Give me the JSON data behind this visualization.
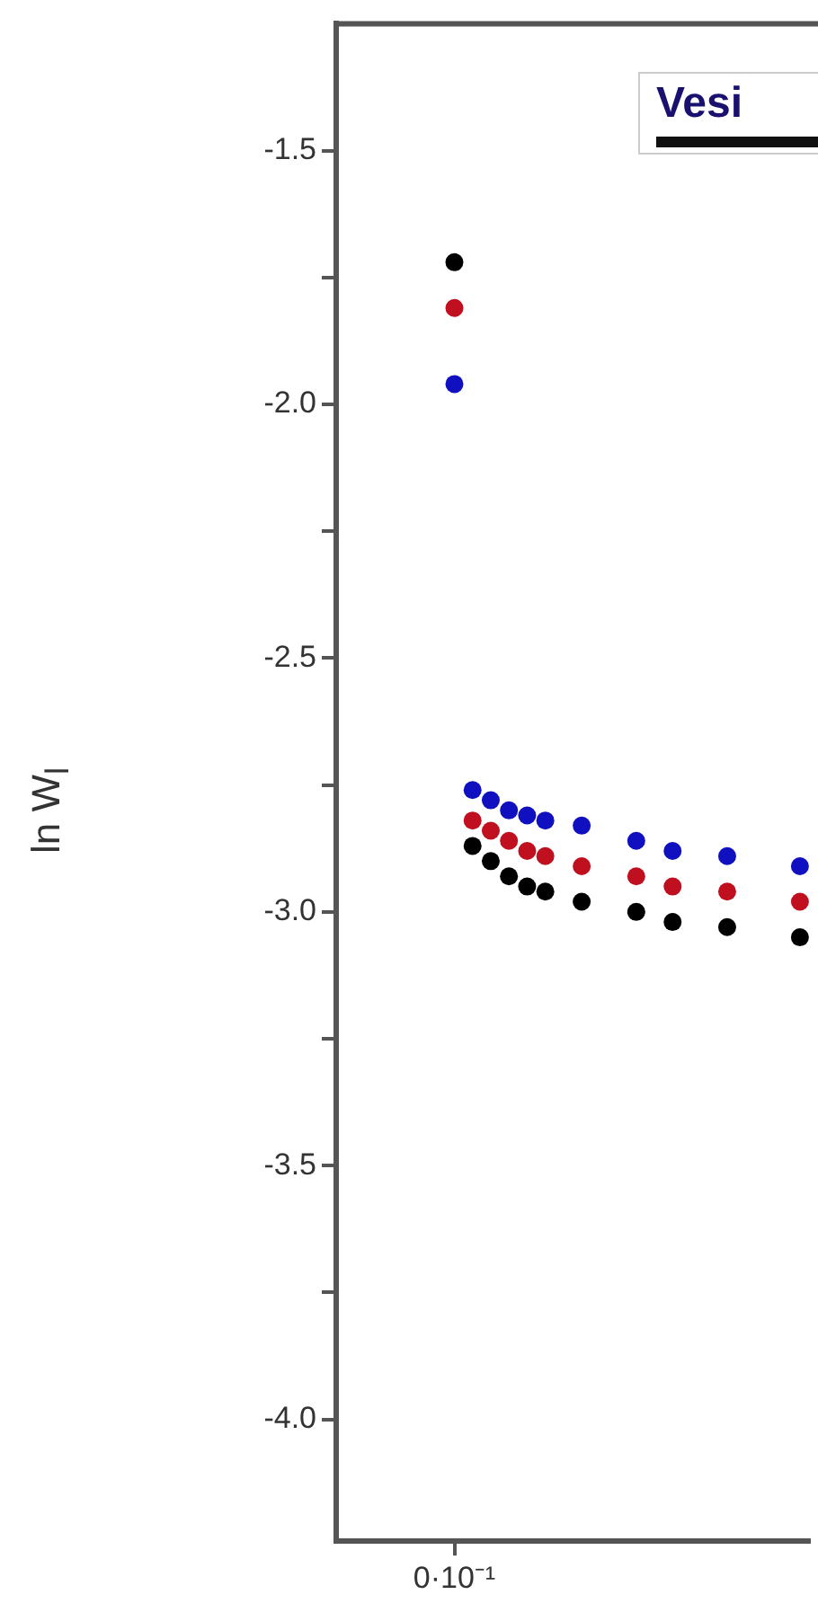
{
  "chart_data": {
    "type": "scatter",
    "ylabel": "ln W$_{l}$",
    "legend_title": "Vesi",
    "marker": "circle",
    "grid": false,
    "categories": [
      null,
      null,
      null,
      null,
      null,
      null,
      "0·10⁻¹",
      null,
      null,
      null,
      null,
      null,
      null,
      null,
      null,
      null,
      null,
      null,
      null,
      null,
      null,
      null,
      null,
      null,
      null,
      null
    ],
    "ylim": [
      -4.24,
      -1.25
    ],
    "yticks": [
      {
        "value": -1.5,
        "label": "-1.5"
      },
      {
        "value": -1.75,
        "label": null
      },
      {
        "value": -2,
        "label": "-2.0"
      },
      {
        "value": -2.25,
        "label": null
      },
      {
        "value": -2.5,
        "label": "-2.5"
      },
      {
        "value": -2.75,
        "label": null
      },
      {
        "value": -3,
        "label": "-3.0"
      },
      {
        "value": -3.25,
        "label": null
      },
      {
        "value": -3.5,
        "label": "-3.5"
      },
      {
        "value": -3.75,
        "label": null
      },
      {
        "value": -4,
        "label": "-4.0"
      }
    ],
    "series": [
      {
        "color": "#000000",
        "values": [
          null,
          null,
          null,
          null,
          null,
          null,
          -1.72,
          -2.87,
          -2.9,
          -2.93,
          -2.95,
          -2.96,
          null,
          -2.98,
          null,
          null,
          -3.0,
          null,
          -3.02,
          null,
          null,
          -3.03,
          null,
          null,
          null,
          -3.05
        ]
      },
      {
        "color": "#c01020",
        "values": [
          null,
          null,
          null,
          null,
          null,
          null,
          -1.81,
          -2.82,
          -2.84,
          -2.86,
          -2.88,
          -2.89,
          null,
          -2.91,
          null,
          null,
          -2.93,
          null,
          -2.95,
          null,
          null,
          -2.96,
          null,
          null,
          null,
          -2.98
        ]
      },
      {
        "color": "#1010c0",
        "values": [
          null,
          null,
          null,
          null,
          null,
          null,
          -1.96,
          -2.76,
          -2.78,
          -2.8,
          -2.81,
          -2.82,
          null,
          -2.83,
          null,
          null,
          -2.86,
          null,
          -2.88,
          null,
          null,
          -2.89,
          null,
          null,
          null,
          -2.91
        ]
      }
    ]
  }
}
